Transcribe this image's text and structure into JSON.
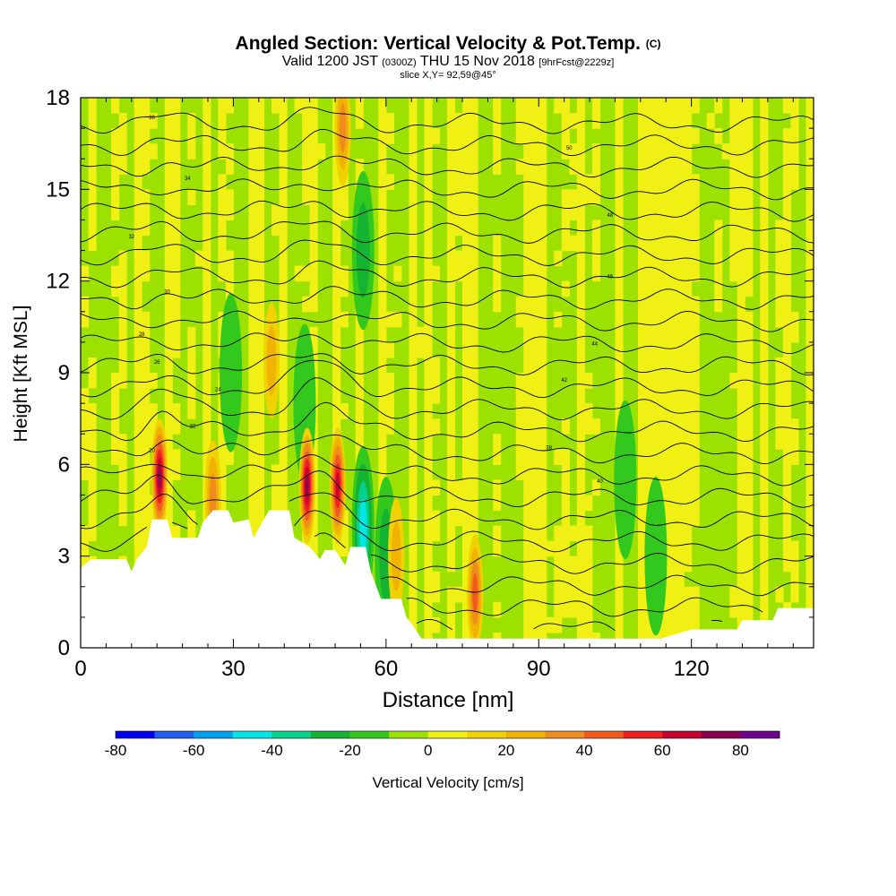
{
  "header": {
    "title": "Angled Section: Vertical Velocity & Pot.Temp.",
    "title_unit": "(C)",
    "valid_prefix": "Valid 1200 JST",
    "valid_z": "(0300Z)",
    "valid_date": "THU 15 Nov 2018",
    "forecast": "[9hrFcst@2229z]",
    "slice": "slice X,Y= 92,59@45°"
  },
  "chart_data": {
    "type": "heatmap",
    "xlabel": "Distance [nm]",
    "ylabel": "Height [Kft MSL]",
    "xlim": [
      0,
      144
    ],
    "ylim": [
      0,
      18
    ],
    "x_ticks": [
      "0",
      "30",
      "60",
      "90",
      "120"
    ],
    "y_ticks": [
      "0",
      "3",
      "6",
      "9",
      "12",
      "15",
      "18"
    ],
    "grid": false,
    "colorbar": {
      "label": "Vertical Velocity [cm/s]",
      "ticks": [
        "-80",
        "-60",
        "-40",
        "-20",
        "0",
        "20",
        "40",
        "60",
        "80"
      ],
      "range": [
        -80,
        90
      ],
      "step": 10,
      "colors": [
        "#0000f0",
        "#1e5ff0",
        "#00a0f0",
        "#00e6e6",
        "#00d28c",
        "#14b432",
        "#32c81e",
        "#9ce100",
        "#f0f014",
        "#f0d200",
        "#f0b400",
        "#f08c1e",
        "#f05a1e",
        "#f01e1e",
        "#c80032",
        "#8c0050",
        "#6e008c"
      ]
    },
    "updrafts": [
      {
        "x": 15.5,
        "z": 5.6,
        "w": 75
      },
      {
        "x": 44.5,
        "z": 5.3,
        "w": 70
      },
      {
        "x": 50.5,
        "z": 5.3,
        "w": 65
      },
      {
        "x": 26.0,
        "z": 4.9,
        "w": 35
      },
      {
        "x": 77.5,
        "z": 1.8,
        "w": 40
      },
      {
        "x": 62.0,
        "z": 3.0,
        "w": 25
      },
      {
        "x": 51.5,
        "z": 17.0,
        "w": 30
      },
      {
        "x": 37.5,
        "z": 9.4,
        "w": 20
      }
    ],
    "downdrafts": [
      {
        "x": 55.5,
        "z": 4.0,
        "w": -40
      },
      {
        "x": 60.0,
        "z": 3.0,
        "w": -25
      },
      {
        "x": 55.5,
        "z": 13.0,
        "w": -20
      },
      {
        "x": 29.5,
        "z": 9.0,
        "w": -15
      },
      {
        "x": 107.0,
        "z": 5.5,
        "w": -12
      },
      {
        "x": 113.0,
        "z": 3.0,
        "w": -15
      },
      {
        "x": 44.0,
        "z": 8.0,
        "w": -12
      }
    ],
    "terrain_kft": [
      [
        0,
        2.6
      ],
      [
        2,
        2.9
      ],
      [
        9,
        2.9
      ],
      [
        10,
        2.5
      ],
      [
        11,
        2.9
      ],
      [
        13,
        3.3
      ],
      [
        14,
        4.2
      ],
      [
        17,
        4.2
      ],
      [
        18,
        3.6
      ],
      [
        23,
        3.6
      ],
      [
        24,
        4.1
      ],
      [
        26,
        4.5
      ],
      [
        29,
        4.5
      ],
      [
        30,
        4.1
      ],
      [
        33,
        4.2
      ],
      [
        34,
        3.6
      ],
      [
        35,
        3.9
      ],
      [
        37,
        4.5
      ],
      [
        41,
        4.5
      ],
      [
        42,
        3.6
      ],
      [
        45,
        3.3
      ],
      [
        47,
        2.9
      ],
      [
        48,
        3.2
      ],
      [
        50,
        3.2
      ],
      [
        52,
        2.7
      ],
      [
        53,
        3.3
      ],
      [
        56,
        3.3
      ],
      [
        57,
        2.5
      ],
      [
        59,
        1.6
      ],
      [
        63,
        1.6
      ],
      [
        64,
        1.0
      ],
      [
        65,
        0.8
      ],
      [
        67,
        0.3
      ],
      [
        114,
        0.3
      ],
      [
        120,
        0.6
      ],
      [
        129,
        0.6
      ],
      [
        130,
        0.9
      ],
      [
        136,
        0.9
      ],
      [
        137,
        1.3
      ],
      [
        144,
        1.3
      ]
    ],
    "theta_levels_c": [
      4,
      6,
      8,
      10,
      12,
      14,
      16,
      18,
      20,
      22,
      24,
      26,
      28,
      30,
      32,
      34,
      36,
      38,
      40,
      42,
      44,
      46,
      48,
      50
    ]
  },
  "contour_labels": [
    "20",
    "22",
    "24",
    "26",
    "28",
    "30",
    "32",
    "34",
    "36",
    "38",
    "40",
    "42",
    "44",
    "46",
    "48",
    "50"
  ],
  "colors": {
    "background": "#ffffff",
    "terrain": "#ffffff",
    "contour": "#000000",
    "axis": "#000000"
  }
}
